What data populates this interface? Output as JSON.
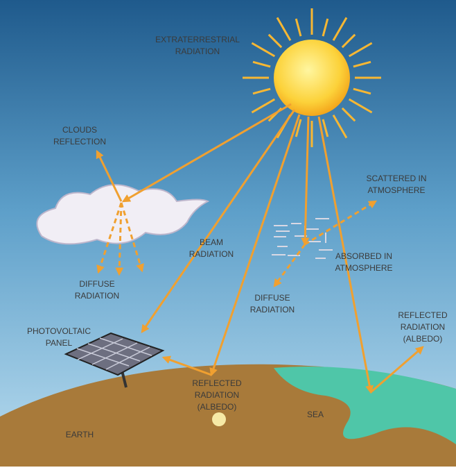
{
  "labels": [
    {
      "lines": [
        "EXTRATERRESTRIAL",
        "RADIATION"
      ]
    },
    {
      "lines": [
        "CLOUDS",
        "REFLECTION"
      ]
    },
    {
      "lines": [
        "BEAM",
        "RADIATION"
      ]
    },
    {
      "lines": [
        "SCATTERED IN",
        "ATMOSPHERE"
      ]
    },
    {
      "lines": [
        "ABSORBED IN",
        "ATMOSPHERE"
      ]
    },
    {
      "lines": [
        "DIFFUSE",
        "RADIATION"
      ]
    },
    {
      "lines": [
        "DIFFUSE",
        "RADIATION"
      ]
    },
    {
      "lines": [
        "PHOTOVOLTAIC",
        "PANEL"
      ]
    },
    {
      "lines": [
        "REFLECTED",
        "RADIATION",
        "(ALBEDO)"
      ]
    },
    {
      "lines": [
        "REFLECTED",
        "RADIATION",
        "(ALBEDO)"
      ]
    },
    {
      "lines": [
        "SEA"
      ]
    },
    {
      "lines": [
        "EARTH"
      ]
    }
  ]
}
